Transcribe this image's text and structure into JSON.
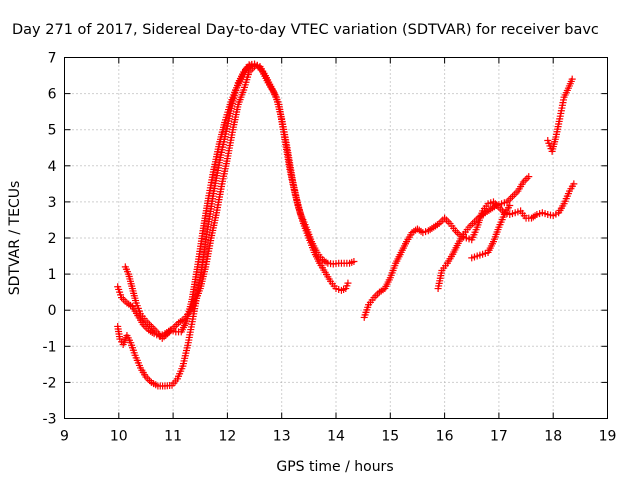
{
  "chart_data": {
    "type": "scatter",
    "title": "Day 271 of 2017, Sidereal Day-to-day VTEC variation (SDTVAR) for receiver bavc",
    "xlabel": "GPS time / hours",
    "ylabel": "SDTVAR / TECUs",
    "xlim": [
      9,
      19
    ],
    "ylim": [
      -3,
      7
    ],
    "xticks": [
      "9",
      "10",
      "11",
      "12",
      "13",
      "14",
      "15",
      "16",
      "17",
      "18",
      "19"
    ],
    "yticks": [
      "-3",
      "-2",
      "-1",
      "0",
      "1",
      "2",
      "3",
      "4",
      "5",
      "6",
      "7"
    ],
    "grid": true,
    "marker": "+",
    "color": "#ff0000",
    "series": [
      {
        "name": "track-a",
        "points": [
          [
            9.98,
            -0.45
          ],
          [
            10.02,
            -0.8
          ],
          [
            10.08,
            -0.95
          ],
          [
            10.15,
            -0.7
          ],
          [
            10.22,
            -0.9
          ],
          [
            10.3,
            -1.25
          ],
          [
            10.4,
            -1.6
          ],
          [
            10.5,
            -1.85
          ],
          [
            10.6,
            -2.0
          ],
          [
            10.72,
            -2.1
          ],
          [
            10.85,
            -2.1
          ],
          [
            10.98,
            -2.08
          ],
          [
            11.08,
            -1.9
          ],
          [
            11.18,
            -1.55
          ],
          [
            11.28,
            -0.9
          ],
          [
            11.38,
            -0.1
          ],
          [
            11.5,
            0.9
          ],
          [
            11.62,
            2.1
          ],
          [
            11.75,
            3.3
          ],
          [
            11.88,
            4.3
          ],
          [
            12.0,
            5.1
          ],
          [
            12.1,
            5.8
          ],
          [
            12.2,
            6.3
          ],
          [
            12.3,
            6.6
          ],
          [
            12.4,
            6.8
          ],
          [
            12.5,
            6.82
          ],
          [
            12.6,
            6.75
          ],
          [
            12.7,
            6.5
          ],
          [
            12.8,
            6.2
          ],
          [
            12.9,
            5.9
          ],
          [
            13.0,
            5.3
          ],
          [
            13.1,
            4.5
          ],
          [
            13.2,
            3.6
          ],
          [
            13.3,
            2.9
          ],
          [
            13.4,
            2.4
          ],
          [
            13.5,
            2.0
          ],
          [
            13.6,
            1.6
          ],
          [
            13.7,
            1.3
          ],
          [
            13.8,
            1.05
          ],
          [
            13.9,
            0.8
          ],
          [
            14.0,
            0.6
          ],
          [
            14.1,
            0.55
          ],
          [
            14.18,
            0.6
          ],
          [
            14.22,
            0.75
          ]
        ]
      },
      {
        "name": "track-b",
        "points": [
          [
            9.98,
            0.65
          ],
          [
            10.05,
            0.35
          ],
          [
            10.15,
            0.2
          ],
          [
            10.25,
            0.1
          ],
          [
            10.35,
            -0.15
          ],
          [
            10.45,
            -0.4
          ],
          [
            10.55,
            -0.55
          ],
          [
            10.65,
            -0.65
          ],
          [
            10.75,
            -0.72
          ],
          [
            10.85,
            -0.65
          ],
          [
            10.95,
            -0.55
          ],
          [
            11.05,
            -0.6
          ],
          [
            11.15,
            -0.6
          ],
          [
            11.25,
            -0.3
          ],
          [
            11.35,
            0.3
          ],
          [
            11.45,
            1.2
          ],
          [
            11.55,
            2.2
          ],
          [
            11.65,
            3.1
          ],
          [
            11.75,
            3.9
          ],
          [
            11.85,
            4.6
          ],
          [
            11.95,
            5.2
          ],
          [
            12.05,
            5.7
          ],
          [
            12.15,
            6.1
          ],
          [
            12.25,
            6.4
          ],
          [
            12.35,
            6.7
          ],
          [
            12.45,
            6.8
          ],
          [
            12.55,
            6.78
          ],
          [
            12.65,
            6.6
          ],
          [
            12.75,
            6.3
          ],
          [
            12.85,
            6.05
          ],
          [
            12.95,
            5.7
          ],
          [
            13.05,
            4.8
          ],
          [
            13.15,
            3.9
          ],
          [
            13.25,
            3.2
          ],
          [
            13.35,
            2.65
          ],
          [
            13.45,
            2.3
          ],
          [
            13.55,
            1.9
          ],
          [
            13.65,
            1.6
          ],
          [
            13.75,
            1.4
          ],
          [
            13.85,
            1.3
          ],
          [
            13.95,
            1.28
          ],
          [
            14.05,
            1.3
          ],
          [
            14.15,
            1.3
          ],
          [
            14.25,
            1.3
          ],
          [
            14.33,
            1.35
          ]
        ]
      },
      {
        "name": "track-c",
        "points": [
          [
            10.12,
            1.2
          ],
          [
            10.18,
            1.0
          ],
          [
            10.25,
            0.6
          ],
          [
            10.32,
            0.2
          ],
          [
            10.4,
            -0.1
          ],
          [
            10.5,
            -0.3
          ],
          [
            10.6,
            -0.45
          ],
          [
            10.7,
            -0.6
          ],
          [
            10.8,
            -0.78
          ],
          [
            10.9,
            -0.65
          ],
          [
            11.0,
            -0.5
          ],
          [
            11.1,
            -0.35
          ],
          [
            11.2,
            -0.25
          ],
          [
            11.3,
            -0.05
          ],
          [
            11.4,
            0.2
          ],
          [
            11.5,
            0.6
          ],
          [
            11.6,
            1.2
          ],
          [
            11.7,
            2.0
          ],
          [
            11.8,
            2.7
          ],
          [
            11.9,
            3.5
          ],
          [
            12.0,
            4.2
          ],
          [
            12.1,
            5.0
          ],
          [
            12.2,
            5.7
          ],
          [
            12.3,
            6.1
          ],
          [
            12.4,
            6.6
          ],
          [
            12.5,
            6.75
          ]
        ]
      },
      {
        "name": "track-d",
        "points": [
          [
            14.52,
            -0.2
          ],
          [
            14.6,
            0.15
          ],
          [
            14.7,
            0.35
          ],
          [
            14.8,
            0.5
          ],
          [
            14.9,
            0.6
          ],
          [
            15.0,
            0.9
          ],
          [
            15.1,
            1.3
          ],
          [
            15.2,
            1.6
          ],
          [
            15.3,
            1.9
          ],
          [
            15.4,
            2.15
          ],
          [
            15.5,
            2.25
          ],
          [
            15.6,
            2.15
          ],
          [
            15.7,
            2.2
          ],
          [
            15.8,
            2.3
          ],
          [
            15.9,
            2.4
          ],
          [
            16.0,
            2.55
          ],
          [
            16.1,
            2.4
          ],
          [
            16.2,
            2.2
          ],
          [
            16.3,
            2.05
          ],
          [
            16.4,
            2.0
          ],
          [
            16.5,
            1.95
          ],
          [
            16.6,
            2.3
          ],
          [
            16.7,
            2.75
          ],
          [
            16.8,
            2.95
          ],
          [
            16.9,
            3.0
          ],
          [
            17.0,
            2.85
          ],
          [
            17.1,
            2.7
          ],
          [
            17.2,
            2.65
          ],
          [
            17.3,
            2.7
          ],
          [
            17.4,
            2.75
          ],
          [
            17.5,
            2.55
          ],
          [
            17.6,
            2.55
          ],
          [
            17.7,
            2.65
          ],
          [
            17.8,
            2.7
          ],
          [
            17.9,
            2.65
          ],
          [
            18.0,
            2.62
          ],
          [
            18.1,
            2.7
          ],
          [
            18.2,
            2.95
          ],
          [
            18.3,
            3.3
          ],
          [
            18.38,
            3.5
          ]
        ]
      },
      {
        "name": "track-e",
        "points": [
          [
            15.88,
            0.6
          ],
          [
            15.95,
            1.1
          ],
          [
            16.05,
            1.3
          ],
          [
            16.15,
            1.55
          ],
          [
            16.25,
            1.85
          ],
          [
            16.35,
            2.1
          ],
          [
            16.45,
            2.3
          ],
          [
            16.55,
            2.45
          ],
          [
            16.65,
            2.6
          ],
          [
            16.75,
            2.7
          ],
          [
            16.85,
            2.8
          ],
          [
            16.95,
            2.9
          ],
          [
            17.05,
            2.95
          ],
          [
            17.15,
            3.0
          ],
          [
            17.25,
            3.15
          ],
          [
            17.35,
            3.3
          ],
          [
            17.45,
            3.55
          ],
          [
            17.55,
            3.7
          ]
        ]
      },
      {
        "name": "track-f",
        "points": [
          [
            16.5,
            1.45
          ],
          [
            16.6,
            1.5
          ],
          [
            16.7,
            1.55
          ],
          [
            16.8,
            1.6
          ],
          [
            16.9,
            1.9
          ],
          [
            17.0,
            2.3
          ],
          [
            17.1,
            2.65
          ],
          [
            17.2,
            2.9
          ]
        ]
      },
      {
        "name": "track-g",
        "points": [
          [
            17.9,
            4.7
          ],
          [
            17.98,
            4.4
          ],
          [
            18.05,
            4.8
          ],
          [
            18.12,
            5.3
          ],
          [
            18.2,
            5.9
          ],
          [
            18.28,
            6.15
          ],
          [
            18.35,
            6.4
          ]
        ]
      }
    ]
  }
}
